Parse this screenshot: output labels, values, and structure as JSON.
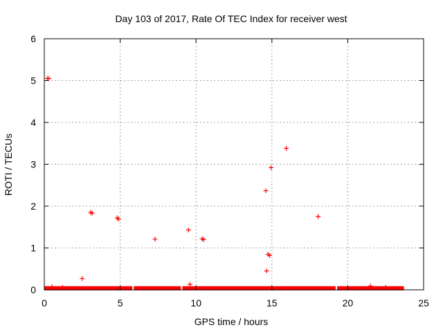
{
  "chart_data": {
    "type": "scatter",
    "title": "Day 103 of 2017, Rate Of TEC Index for receiver west",
    "xlabel": "GPS time / hours",
    "ylabel": "ROTI / TECUs",
    "xlim": [
      0,
      25
    ],
    "ylim": [
      0,
      6
    ],
    "grid": true,
    "marker": "+",
    "colors": {
      "points": "#ff0000",
      "frame": "#000000",
      "grid": "#a0a0a0"
    },
    "x_ticks": [
      {
        "value": 0,
        "label": "0"
      },
      {
        "value": 5,
        "label": "5"
      },
      {
        "value": 10,
        "label": "10"
      },
      {
        "value": 15,
        "label": "15"
      },
      {
        "value": 20,
        "label": "20"
      },
      {
        "value": 25,
        "label": "25"
      }
    ],
    "y_ticks": [
      {
        "value": 0,
        "label": "0"
      },
      {
        "value": 1,
        "label": "1"
      },
      {
        "value": 2,
        "label": "2"
      },
      {
        "value": 3,
        "label": "3"
      },
      {
        "value": 4,
        "label": "4"
      },
      {
        "value": 5,
        "label": "5"
      },
      {
        "value": 6,
        "label": "6"
      }
    ],
    "baseline_segments": [
      {
        "x_start": 0.0,
        "x_end": 5.8,
        "y": 0.02
      },
      {
        "x_start": 5.9,
        "x_end": 9.0,
        "y": 0.02
      },
      {
        "x_start": 9.1,
        "x_end": 19.2,
        "y": 0.02
      },
      {
        "x_start": 19.3,
        "x_end": 23.7,
        "y": 0.02
      }
    ],
    "series": [
      {
        "name": "ROTI",
        "points": [
          {
            "x": 0.2,
            "y": 5.05
          },
          {
            "x": 0.3,
            "y": 5.05
          },
          {
            "x": 0.5,
            "y": 0.07
          },
          {
            "x": 1.2,
            "y": 0.06
          },
          {
            "x": 2.5,
            "y": 0.27
          },
          {
            "x": 3.05,
            "y": 1.85
          },
          {
            "x": 3.15,
            "y": 1.83
          },
          {
            "x": 4.8,
            "y": 1.72
          },
          {
            "x": 4.9,
            "y": 1.69
          },
          {
            "x": 7.3,
            "y": 1.21
          },
          {
            "x": 9.5,
            "y": 1.43
          },
          {
            "x": 9.6,
            "y": 0.13
          },
          {
            "x": 10.4,
            "y": 1.22
          },
          {
            "x": 10.5,
            "y": 1.2
          },
          {
            "x": 14.6,
            "y": 2.37
          },
          {
            "x": 14.65,
            "y": 0.45
          },
          {
            "x": 14.75,
            "y": 0.85
          },
          {
            "x": 14.85,
            "y": 0.82
          },
          {
            "x": 14.95,
            "y": 2.92
          },
          {
            "x": 15.95,
            "y": 3.38
          },
          {
            "x": 18.05,
            "y": 1.75
          },
          {
            "x": 21.5,
            "y": 0.09
          },
          {
            "x": 22.5,
            "y": 0.06
          }
        ]
      }
    ]
  }
}
